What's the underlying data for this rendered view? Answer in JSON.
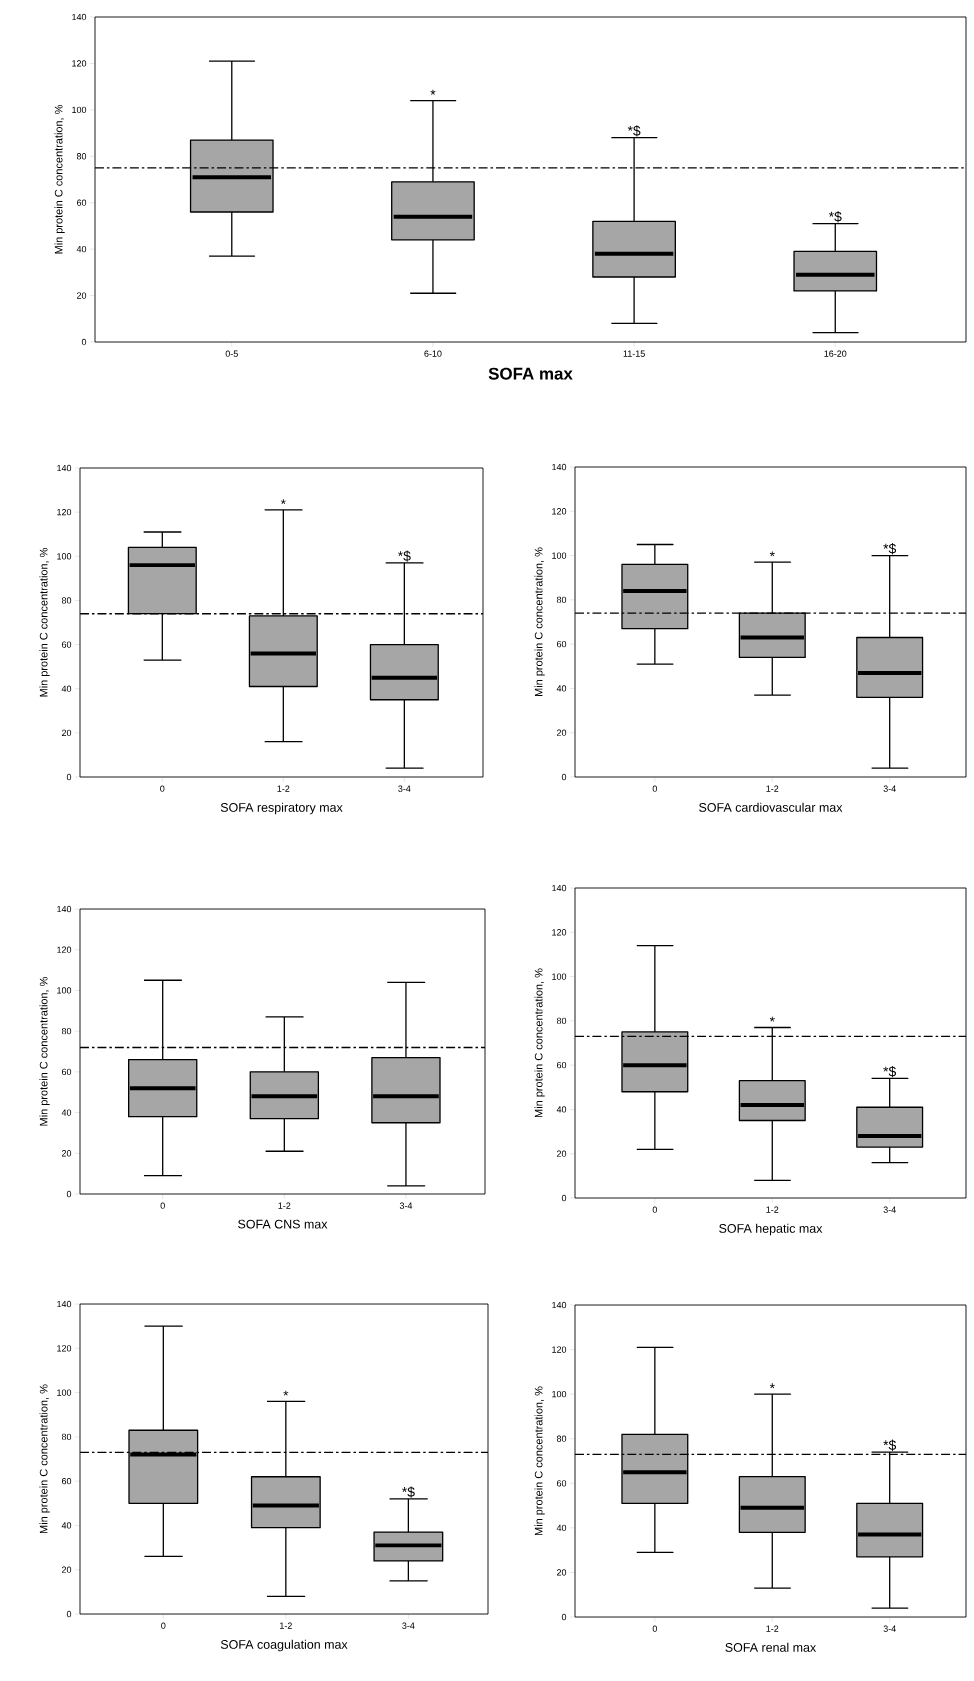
{
  "chart_data": [
    {
      "type": "box",
      "categories": [
        "0-5",
        "6-10",
        "11-15",
        "16-20"
      ],
      "xlabel": "SOFA max",
      "ylabel": "Min protein C concentration, %",
      "ylim": [
        0,
        140
      ],
      "yticks": [
        0,
        20,
        40,
        60,
        80,
        100,
        120,
        140
      ],
      "series": [
        {
          "color": "#a6a6a6",
          "boxes": [
            {
              "low": 37,
              "q1": 56,
              "median": 71,
              "q3": 87,
              "high": 121
            },
            {
              "low": 21,
              "q1": 44,
              "median": 54,
              "q3": 69,
              "high": 104
            },
            {
              "low": 8,
              "q1": 28,
              "median": 38,
              "q3": 52,
              "high": 88
            },
            {
              "low": 4,
              "q1": 22,
              "median": 29,
              "q3": 39,
              "high": 51
            }
          ]
        }
      ],
      "ref_lines": [
        {
          "axis": "y",
          "value": 75,
          "line_style": "dashed"
        }
      ],
      "annotations": [
        "*",
        "*$",
        "*$"
      ]
    },
    {
      "type": "box",
      "categories": [
        "0",
        "1-2",
        "3-4"
      ],
      "xlabel": "SOFA respiratory max",
      "ylabel": "Min protein C concentration, %",
      "ylim": [
        0,
        140
      ],
      "yticks": [
        0,
        20,
        40,
        60,
        80,
        100,
        120,
        140
      ],
      "series": [
        {
          "color": "#a6a6a6",
          "boxes": [
            {
              "low": 53,
              "q1": 74,
              "median": 96,
              "q3": 104,
              "high": 111
            },
            {
              "low": 16,
              "q1": 41,
              "median": 56,
              "q3": 73,
              "high": 121
            },
            {
              "low": 4,
              "q1": 35,
              "median": 45,
              "q3": 60,
              "high": 97
            }
          ]
        }
      ],
      "ref_lines": [
        {
          "axis": "y",
          "value": 74,
          "line_style": "dashed"
        }
      ],
      "annotations": [
        "*",
        "*$"
      ]
    },
    {
      "type": "box",
      "categories": [
        "0",
        "1-2",
        "3-4"
      ],
      "xlabel": "SOFA cardiovascular max",
      "ylabel": "Min protein C concentration, %",
      "ylim": [
        0,
        140
      ],
      "yticks": [
        0,
        20,
        40,
        60,
        80,
        100,
        120,
        140
      ],
      "series": [
        {
          "color": "#a6a6a6",
          "boxes": [
            {
              "low": 51,
              "q1": 67,
              "median": 84,
              "q3": 96,
              "high": 105
            },
            {
              "low": 37,
              "q1": 54,
              "median": 63,
              "q3": 74,
              "high": 97
            },
            {
              "low": 4,
              "q1": 36,
              "median": 47,
              "q3": 63,
              "high": 100
            }
          ]
        }
      ],
      "ref_lines": [
        {
          "axis": "y",
          "value": 74,
          "line_style": "dashed"
        }
      ],
      "annotations": [
        "*",
        "*$"
      ]
    },
    {
      "type": "box",
      "categories": [
        "0",
        "1-2",
        "3-4"
      ],
      "xlabel": "SOFA CNS max",
      "ylabel": "Min protein C concentration, %",
      "ylim": [
        0,
        140
      ],
      "yticks": [
        0,
        20,
        40,
        60,
        80,
        100,
        120,
        140
      ],
      "series": [
        {
          "color": "#a6a6a6",
          "boxes": [
            {
              "low": 9,
              "q1": 38,
              "median": 52,
              "q3": 66,
              "high": 105
            },
            {
              "low": 21,
              "q1": 37,
              "median": 48,
              "q3": 60,
              "high": 87
            },
            {
              "low": 4,
              "q1": 35,
              "median": 48,
              "q3": 67,
              "high": 104
            }
          ]
        }
      ],
      "ref_lines": [
        {
          "axis": "y",
          "value": 72,
          "line_style": "dashed"
        }
      ]
    },
    {
      "type": "box",
      "categories": [
        "0",
        "1-2",
        "3-4"
      ],
      "xlabel": "SOFA hepatic max",
      "ylabel": "Min protein C concentration, %",
      "ylim": [
        0,
        140
      ],
      "yticks": [
        0,
        20,
        40,
        60,
        80,
        100,
        120,
        140
      ],
      "series": [
        {
          "color": "#a6a6a6",
          "boxes": [
            {
              "low": 22,
              "q1": 48,
              "median": 60,
              "q3": 75,
              "high": 114
            },
            {
              "low": 8,
              "q1": 35,
              "median": 42,
              "q3": 53,
              "high": 77
            },
            {
              "low": 16,
              "q1": 23,
              "median": 28,
              "q3": 41,
              "high": 54
            }
          ]
        }
      ],
      "ref_lines": [
        {
          "axis": "y",
          "value": 73,
          "line_style": "dashed"
        }
      ],
      "annotations": [
        "*",
        "*$"
      ]
    },
    {
      "type": "box",
      "categories": [
        "0",
        "1-2",
        "3-4"
      ],
      "xlabel": "SOFA coagulation max",
      "ylabel": "Min protein C concentration, %",
      "ylim": [
        0,
        140
      ],
      "yticks": [
        0,
        20,
        40,
        60,
        80,
        100,
        120,
        140
      ],
      "series": [
        {
          "color": "#a6a6a6",
          "boxes": [
            {
              "low": 26,
              "q1": 50,
              "median": 72,
              "q3": 83,
              "high": 130
            },
            {
              "low": 8,
              "q1": 39,
              "median": 49,
              "q3": 62,
              "high": 96
            },
            {
              "low": 15,
              "q1": 24,
              "median": 31,
              "q3": 37,
              "high": 52
            }
          ]
        }
      ],
      "ref_lines": [
        {
          "axis": "y",
          "value": 73,
          "line_style": "dashed"
        }
      ],
      "annotations": [
        "*",
        "*$"
      ]
    },
    {
      "type": "box",
      "categories": [
        "0",
        "1-2",
        "3-4"
      ],
      "xlabel": "SOFA renal max",
      "ylabel": "Min protein C concentration, %",
      "ylim": [
        0,
        140
      ],
      "yticks": [
        0,
        20,
        40,
        60,
        80,
        100,
        120,
        140
      ],
      "series": [
        {
          "color": "#a6a6a6",
          "boxes": [
            {
              "low": 29,
              "q1": 51,
              "median": 65,
              "q3": 82,
              "high": 121
            },
            {
              "low": 13,
              "q1": 38,
              "median": 49,
              "q3": 63,
              "high": 100
            },
            {
              "low": 4,
              "q1": 27,
              "median": 37,
              "q3": 51,
              "high": 74
            }
          ]
        }
      ],
      "ref_lines": [
        {
          "axis": "y",
          "value": 73,
          "line_style": "dashed"
        }
      ],
      "annotations": [
        "*",
        "*$"
      ]
    }
  ]
}
